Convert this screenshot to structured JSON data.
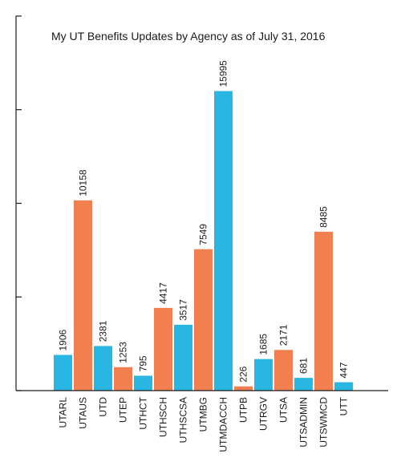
{
  "chart_data": {
    "type": "bar",
    "title": "My UT Benefits Updates by Agency as of July 31, 2016",
    "xlabel": "",
    "ylabel": "",
    "ylim": [
      0,
      20000
    ],
    "y_ticks": [
      0,
      5000,
      10000,
      15000,
      20000
    ],
    "tick_labels_shown": false,
    "grid": false,
    "legend": "none",
    "colors": {
      "blue": "#29b6e3",
      "orange": "#f27f4f"
    },
    "categories": [
      "UTARL",
      "UTAUS",
      "UTD",
      "UTEP",
      "UTHCT",
      "UTHSCH",
      "UTHSCSA",
      "UTMBG",
      "UTMDACCH",
      "UTPB",
      "UTRGV",
      "UTSA",
      "UTSADMIN",
      "UTSWMCD",
      "UTT"
    ],
    "values": [
      1906,
      10158,
      2381,
      1253,
      795,
      4417,
      3517,
      7549,
      15995,
      226,
      1685,
      2171,
      681,
      8485,
      447
    ],
    "bar_colors": [
      "blue",
      "orange",
      "blue",
      "orange",
      "blue",
      "orange",
      "blue",
      "orange",
      "blue",
      "orange",
      "blue",
      "orange",
      "blue",
      "orange",
      "blue"
    ]
  }
}
